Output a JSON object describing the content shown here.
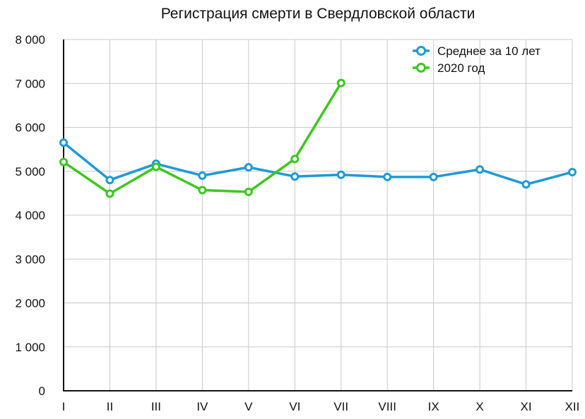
{
  "chart_data": {
    "type": "line",
    "title": "Регистрация смерти в Свердловской области",
    "xlabel": "",
    "ylabel": "",
    "categories": [
      "I",
      "II",
      "III",
      "IV",
      "V",
      "VI",
      "VII",
      "VIII",
      "IX",
      "X",
      "XI",
      "XII"
    ],
    "y_tick_labels": [
      "0",
      "1 000",
      "2 000",
      "3 000",
      "4 000",
      "5 000",
      "6 000",
      "7 000",
      "8 000"
    ],
    "ylim": [
      0,
      8000
    ],
    "grid": true,
    "legend_position": "top-right",
    "series": [
      {
        "name": "Среднее за 10 лет",
        "color": "#1f9ad6",
        "values": [
          5650,
          4800,
          5170,
          4900,
          5090,
          4880,
          4920,
          4870,
          4870,
          5040,
          4700,
          4980
        ]
      },
      {
        "name": "2020 год",
        "color": "#3cc81f",
        "values": [
          5210,
          4490,
          5100,
          4570,
          4530,
          5280,
          7010,
          null,
          null,
          null,
          null,
          null
        ]
      }
    ]
  }
}
